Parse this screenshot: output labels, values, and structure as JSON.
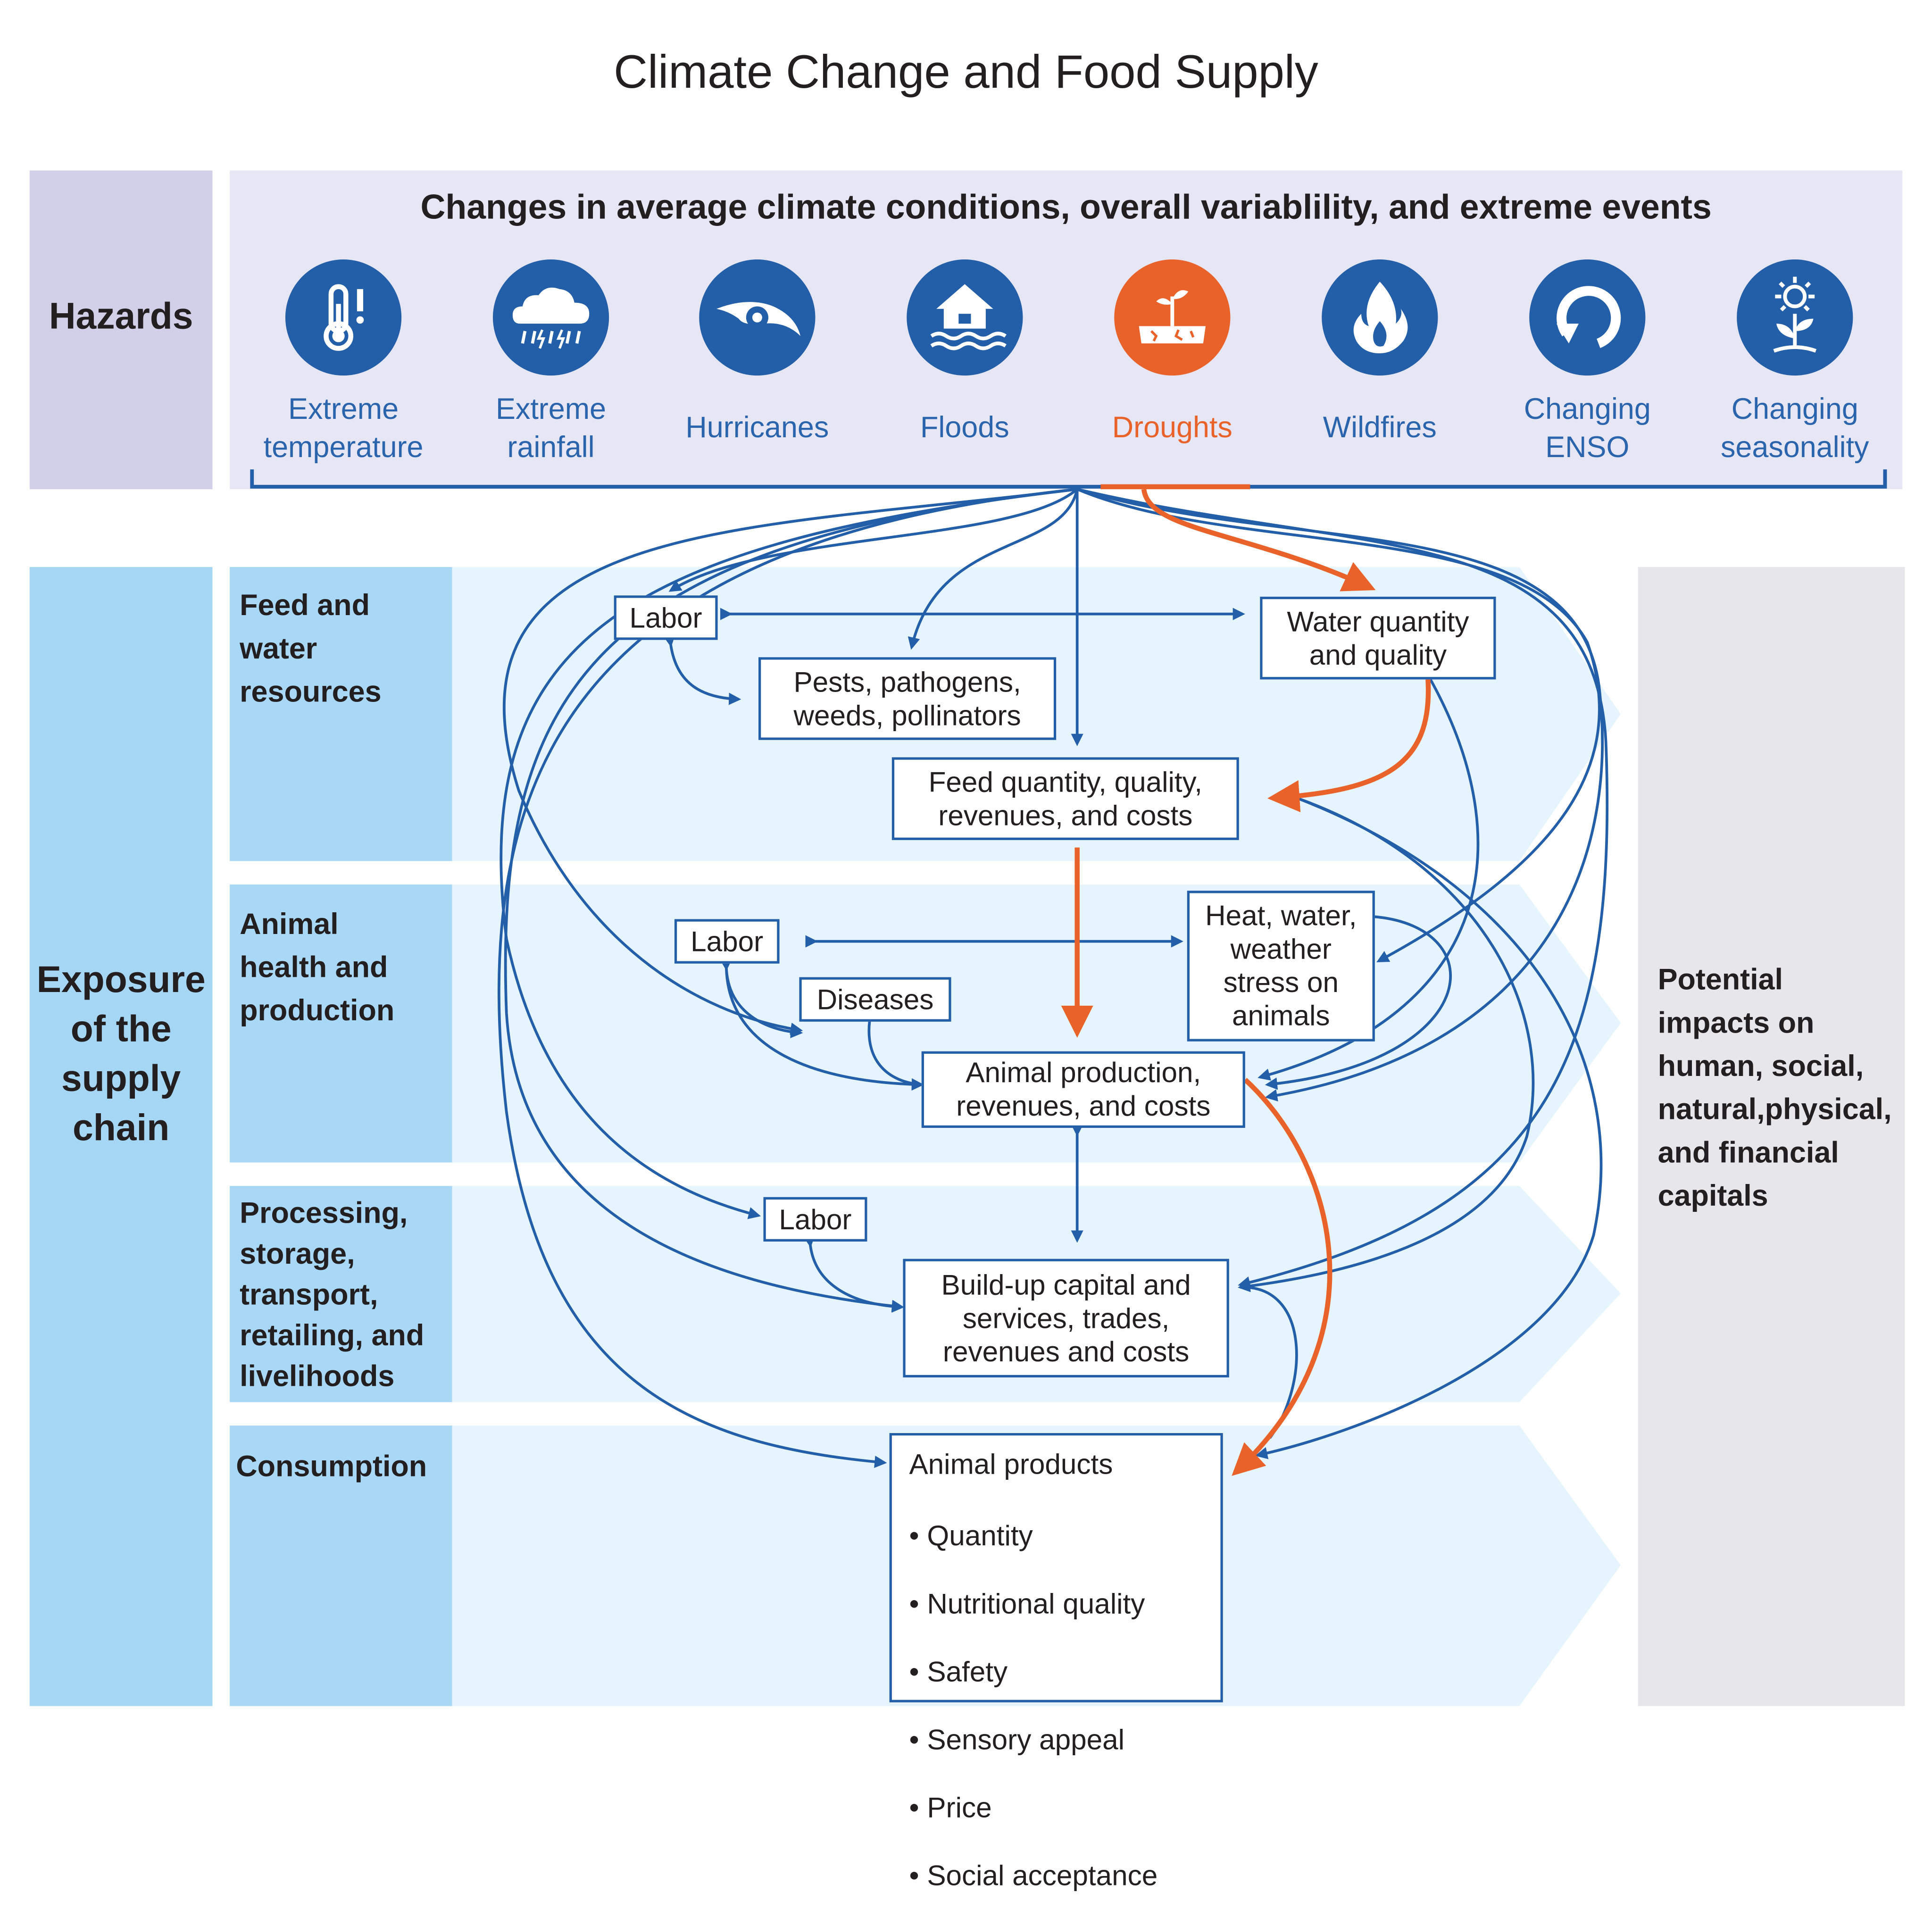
{
  "title": "Climate Change and Food Supply",
  "colors": {
    "blue": "#235ea8",
    "orange": "#e8622a",
    "hazard_bg": "#e6e6f4",
    "hazard_side": "#d1d0e8",
    "exposure_side": "#a5d7f4",
    "stage_col": "#a8d8f5",
    "stage_bg": "#e6f4fd",
    "impacts_bg": "#e7e7eb"
  },
  "hazards": {
    "label": "Hazards",
    "heading": "Changes in average climate conditions, overall variablility, and extreme events",
    "items": [
      {
        "label": "Extreme\ntemperature",
        "icon": "thermometer-icon",
        "highlight": false
      },
      {
        "label": "Extreme\nrainfall",
        "icon": "rain-cloud-icon",
        "highlight": false
      },
      {
        "label": "Hurricanes",
        "icon": "hurricane-icon",
        "highlight": false
      },
      {
        "label": "Floods",
        "icon": "flood-house-icon",
        "highlight": false
      },
      {
        "label": "Droughts",
        "icon": "drought-icon",
        "highlight": true
      },
      {
        "label": "Wildfires",
        "icon": "flame-icon",
        "highlight": false
      },
      {
        "label": "Changing\nENSO",
        "icon": "cycle-arrow-icon",
        "highlight": false
      },
      {
        "label": "Changing\nseasonality",
        "icon": "sun-plant-icon",
        "highlight": false
      }
    ]
  },
  "exposure": {
    "label": "Exposure\nof the\nsupply\nchain",
    "stages": [
      {
        "label": "Feed and\nwater\nresources"
      },
      {
        "label": "Animal\nhealth and\nproduction"
      },
      {
        "label": "Processing,\nstorage,\ntransport,\nretailing, and\nlivelihoods"
      },
      {
        "label": "Consumption"
      }
    ]
  },
  "boxes": {
    "labor1": "Labor",
    "water": "Water quantity\nand quality",
    "pests": "Pests, pathogens,\nweeds, pollinators",
    "feed": "Feed quantity, quality,\nrevenues, and costs",
    "labor2": "Labor",
    "heat": "Heat, water,\nweather\nstress on\nanimals",
    "diseases": "Diseases",
    "animal_production": "Animal production,\nrevenues, and costs",
    "labor3": "Labor",
    "buildup": "Build-up capital and\nservices, trades,\nrevenues and costs",
    "products_title": "Animal products",
    "products_items": [
      "Quantity",
      "Nutritional quality",
      "Safety",
      "Sensory appeal",
      "Price",
      "Social acceptance"
    ]
  },
  "impacts": {
    "label": "Potential\nimpacts on\nhuman, social,\nnatural,physical,\nand financial\ncapitals"
  }
}
